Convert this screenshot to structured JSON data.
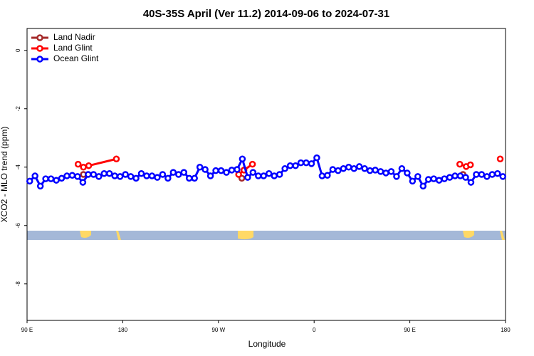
{
  "chart_data": {
    "type": "line",
    "title": "40S-35S April (Ver 11.2)   2014-09-06 to 2024-07-31",
    "xlabel": "Longitude",
    "ylabel": "XCO2 - MLO trend (ppm)",
    "xlim": [
      90,
      540
    ],
    "xticks": [
      {
        "value": 90,
        "label": "90 E"
      },
      180,
      {
        "value": 270,
        "label": "90 W"
      },
      {
        "value": 360,
        "label": "0"
      },
      {
        "value": 450,
        "label": "90 E"
      },
      {
        "value": 540,
        "label": "180"
      }
    ],
    "ylim": [
      -9.25,
      0.75
    ],
    "yticks": [
      0,
      -2,
      -4,
      -6,
      -8
    ],
    "legend": "top-left",
    "series": [
      {
        "name": "Land Nadir",
        "color": "#a52a2a",
        "x": [
          143,
          220,
          292,
          400,
          500
        ],
        "values": [
          -4.25,
          null,
          -4.38,
          null,
          -4.25
        ]
      },
      {
        "name": "Land Glint",
        "color": "#ff0000",
        "x": [
          138,
          143,
          148,
          174,
          230,
          289,
          294,
          302,
          400,
          497,
          503,
          507,
          520,
          535
        ],
        "values": [
          -3.9,
          -4.0,
          -3.95,
          -3.72,
          null,
          -4.25,
          -4.1,
          -3.9,
          null,
          -3.9,
          -3.98,
          -3.92,
          null,
          -3.72
        ]
      },
      {
        "name": "Ocean Glint",
        "color": "#0000ff",
        "x": [
          92.5,
          97.5,
          102.5,
          107.5,
          112.5,
          117.5,
          122.5,
          127.5,
          132.5,
          137.5,
          142.5,
          147.5,
          152.5,
          157.5,
          162.5,
          167.5,
          172.5,
          177.5,
          182.5,
          187.5,
          192.5,
          197.5,
          202.5,
          207.5,
          212.5,
          217.5,
          222.5,
          227.5,
          232.5,
          237.5,
          242.5,
          247.5,
          252.5,
          257.5,
          262.5,
          267.5,
          272.5,
          277.5,
          282.5,
          287.5,
          292.5,
          297.5,
          302.5,
          307.5,
          312.5,
          317.5,
          322.5,
          327.5,
          332.5,
          337.5,
          342.5,
          347.5,
          352.5,
          357.5,
          362.5,
          367.5,
          372.5,
          377.5,
          382.5,
          387.5,
          392.5,
          397.5,
          402.5,
          407.5,
          412.5,
          417.5,
          422.5,
          427.5,
          432.5,
          437.5,
          442.5,
          447.5,
          452.5,
          457.5,
          462.5,
          467.5,
          472.5,
          477.5,
          482.5,
          487.5,
          492.5,
          497.5,
          502.5,
          507.5,
          512.5,
          517.5,
          522.5,
          527.5,
          532.5,
          537.5
        ],
        "values": [
          -4.48,
          -4.3,
          -4.65,
          -4.4,
          -4.4,
          -4.45,
          -4.38,
          -4.3,
          -4.28,
          -4.32,
          -4.52,
          -4.25,
          -4.25,
          -4.32,
          -4.22,
          -4.22,
          -4.3,
          -4.32,
          -4.25,
          -4.32,
          -4.38,
          -4.22,
          -4.3,
          -4.3,
          -4.35,
          -4.25,
          -4.38,
          -4.18,
          -4.25,
          -4.18,
          -4.38,
          -4.38,
          -4.0,
          -4.08,
          -4.3,
          -4.12,
          -4.12,
          -4.18,
          -4.1,
          -4.08,
          -3.72,
          -4.35,
          -4.18,
          -4.3,
          -4.3,
          -4.22,
          -4.3,
          -4.25,
          -4.05,
          -3.95,
          -3.95,
          -3.85,
          -3.85,
          -3.88,
          -3.68,
          -4.3,
          -4.28,
          -4.08,
          -4.12,
          -4.05,
          -4.0,
          -4.05,
          -3.98,
          -4.05,
          -4.12,
          -4.1,
          -4.15,
          -4.2,
          -4.15,
          -4.32,
          -4.05,
          -4.2,
          -4.48,
          -4.32,
          -4.65,
          -4.42,
          -4.4,
          -4.45,
          -4.4,
          -4.35,
          -4.3,
          -4.3,
          -4.35,
          -4.52,
          -4.25,
          -4.25,
          -4.32,
          -4.25,
          -4.22,
          -4.32
        ]
      }
    ]
  }
}
